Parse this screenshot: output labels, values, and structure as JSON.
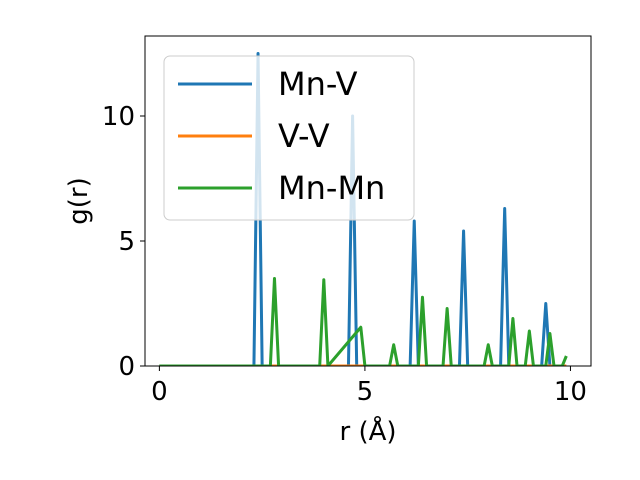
{
  "chart_data": {
    "type": "line",
    "title": "",
    "xlabel": "r (Å)",
    "ylabel": "g(r)",
    "xlim": [
      -0.35,
      10.5
    ],
    "ylim": [
      0,
      13.2
    ],
    "xticks": [
      0,
      5,
      10
    ],
    "yticks": [
      0,
      5,
      10
    ],
    "grid": false,
    "legend": "upper-left",
    "series": [
      {
        "name": "Mn-V",
        "color": "#1f77b4",
        "x": [
          0,
          2.3,
          2.4,
          2.5,
          4.6,
          4.7,
          4.8,
          6.1,
          6.2,
          6.3,
          7.3,
          7.4,
          7.5,
          8.3,
          8.4,
          8.5,
          9.3,
          9.4,
          9.5
        ],
        "y": [
          0,
          0,
          12.5,
          0,
          0,
          10.0,
          0,
          0,
          5.8,
          0,
          0,
          5.4,
          0,
          0,
          6.3,
          0,
          0,
          2.5,
          0
        ]
      },
      {
        "name": "V-V",
        "color": "#ff7f0e",
        "x": [
          0,
          9.9
        ],
        "y": [
          0,
          0
        ]
      },
      {
        "name": "Mn-Mn",
        "color": "#2ca02c",
        "x": [
          0,
          2.7,
          2.8,
          2.9,
          3.9,
          4.0,
          4.1,
          4.9,
          5.0,
          5.6,
          5.7,
          5.8,
          6.3,
          6.4,
          6.5,
          6.9,
          7.0,
          7.1,
          7.9,
          8.0,
          8.1,
          8.2,
          8.3,
          8.4,
          8.5,
          8.6,
          8.7,
          8.9,
          9.0,
          9.1,
          9.4,
          9.5,
          9.6,
          9.8,
          9.9
        ],
        "y": [
          0,
          0,
          3.5,
          0,
          0,
          3.45,
          0,
          1.55,
          0,
          0,
          0.85,
          0,
          0,
          2.75,
          0,
          0,
          2.3,
          0,
          0,
          0.85,
          0,
          0,
          0,
          0,
          0,
          1.9,
          0,
          0,
          1.4,
          0,
          0,
          1.3,
          0,
          0,
          0.4
        ]
      }
    ]
  }
}
